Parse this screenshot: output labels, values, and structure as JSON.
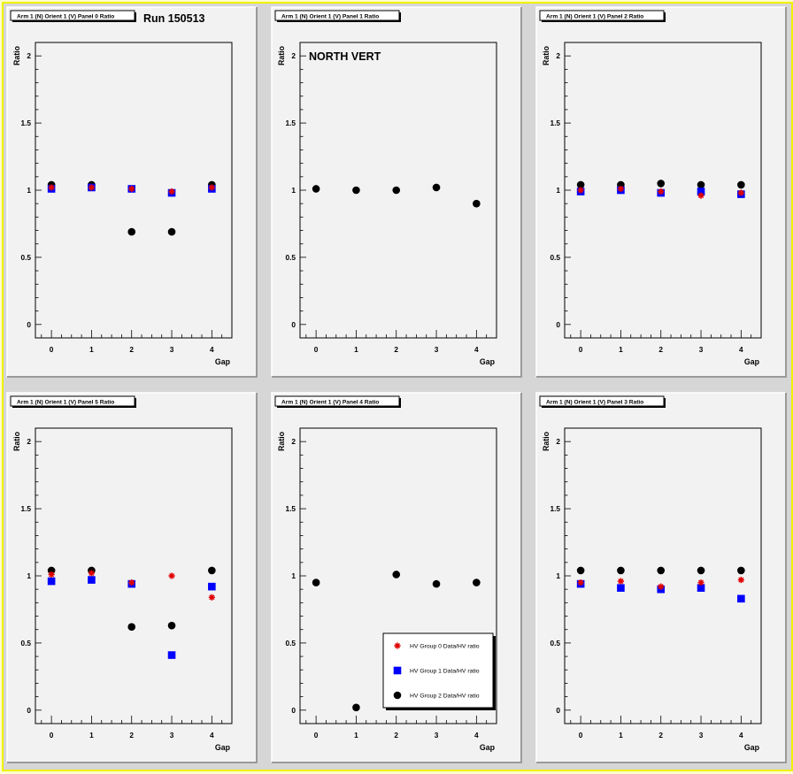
{
  "run_label": "Run 150513",
  "colors": {
    "group0": "#e00000",
    "group1": "#0000ff",
    "group2": "#000000",
    "pad": "#f2f2f2",
    "canvas": "#d6d6d6"
  },
  "legend": {
    "entries": [
      "HV Group 0 Data/HV ratio",
      "HV Group 1 Data/HV ratio",
      "HV Group 2 Data/HV ratio"
    ],
    "markers": [
      "star",
      "square",
      "circle"
    ]
  },
  "chart_data": [
    {
      "type": "scatter",
      "title": "Arm 1 (N) Orient 1 (V) Panel 0 Ratio",
      "annotation": "Run 150513",
      "xlabel": "Gap",
      "ylabel": "Ratio",
      "xlim": [
        -0.4,
        4.5
      ],
      "ylim": [
        -0.1,
        2.1
      ],
      "xticks": [
        "0",
        "1",
        "2",
        "3",
        "4"
      ],
      "yticks": [
        "0",
        "0.5",
        "1",
        "1.5",
        "2"
      ],
      "grid": false,
      "series": [
        {
          "name": "HV Group 0 Data/HV ratio",
          "x": [
            0,
            1,
            2,
            3,
            4
          ],
          "y": [
            1.02,
            1.02,
            1.01,
            0.99,
            1.02
          ]
        },
        {
          "name": "HV Group 1 Data/HV ratio",
          "x": [
            0,
            1,
            2,
            3,
            4
          ],
          "y": [
            1.01,
            1.02,
            1.01,
            0.98,
            1.01
          ]
        },
        {
          "name": "HV Group 2 Data/HV ratio",
          "x": [
            0,
            1,
            2,
            3,
            4
          ],
          "y": [
            1.04,
            1.04,
            0.69,
            0.69,
            1.04
          ]
        }
      ]
    },
    {
      "type": "scatter",
      "title": "Arm 1 (N) Orient 1 (V) Panel 1 Ratio",
      "annotation": "NORTH VERT",
      "xlabel": "Gap",
      "ylabel": "Ratio",
      "xlim": [
        -0.4,
        4.5
      ],
      "ylim": [
        -0.1,
        2.1
      ],
      "xticks": [
        "0",
        "1",
        "2",
        "3",
        "4"
      ],
      "yticks": [
        "0",
        "0.5",
        "1",
        "1.5",
        "2"
      ],
      "grid": false,
      "series": [
        {
          "name": "HV Group 0 Data/HV ratio",
          "x": [],
          "y": []
        },
        {
          "name": "HV Group 1 Data/HV ratio",
          "x": [],
          "y": []
        },
        {
          "name": "HV Group 2 Data/HV ratio",
          "x": [
            0,
            1,
            2,
            3,
            4
          ],
          "y": [
            1.01,
            1.0,
            1.0,
            1.02,
            0.9
          ]
        }
      ]
    },
    {
      "type": "scatter",
      "title": "Arm 1 (N) Orient 1 (V) Panel 2 Ratio",
      "annotation": "",
      "xlabel": "Gap",
      "ylabel": "Ratio",
      "xlim": [
        -0.4,
        4.5
      ],
      "ylim": [
        -0.1,
        2.1
      ],
      "xticks": [
        "0",
        "1",
        "2",
        "3",
        "4"
      ],
      "yticks": [
        "0",
        "0.5",
        "1",
        "1.5",
        "2"
      ],
      "grid": false,
      "series": [
        {
          "name": "HV Group 0 Data/HV ratio",
          "x": [
            0,
            1,
            2,
            3,
            4
          ],
          "y": [
            1.0,
            1.01,
            0.99,
            0.96,
            0.98
          ]
        },
        {
          "name": "HV Group 1 Data/HV ratio",
          "x": [
            0,
            1,
            2,
            3,
            4
          ],
          "y": [
            0.99,
            1.0,
            0.98,
            0.99,
            0.97
          ]
        },
        {
          "name": "HV Group 2 Data/HV ratio",
          "x": [
            0,
            1,
            2,
            3,
            4
          ],
          "y": [
            1.04,
            1.04,
            1.05,
            1.04,
            1.04
          ]
        }
      ]
    },
    {
      "type": "scatter",
      "title": "Arm 1 (N) Orient 1 (V) Panel 5 Ratio",
      "annotation": "",
      "xlabel": "Gap",
      "ylabel": "Ratio",
      "xlim": [
        -0.4,
        4.5
      ],
      "ylim": [
        -0.1,
        2.1
      ],
      "xticks": [
        "0",
        "1",
        "2",
        "3",
        "4"
      ],
      "yticks": [
        "0",
        "0.5",
        "1",
        "1.5",
        "2"
      ],
      "grid": false,
      "series": [
        {
          "name": "HV Group 0 Data/HV ratio",
          "x": [
            0,
            1,
            2,
            3,
            4
          ],
          "y": [
            1.01,
            1.02,
            0.95,
            1.0,
            0.84
          ]
        },
        {
          "name": "HV Group 1 Data/HV ratio",
          "x": [
            0,
            1,
            2,
            3,
            4
          ],
          "y": [
            0.96,
            0.97,
            0.94,
            0.41,
            0.92
          ]
        },
        {
          "name": "HV Group 2 Data/HV ratio",
          "x": [
            0,
            1,
            2,
            3,
            4
          ],
          "y": [
            1.04,
            1.04,
            0.62,
            0.63,
            1.04
          ]
        }
      ]
    },
    {
      "type": "scatter",
      "title": "Arm 1 (N) Orient 1 (V) Panel 4 Ratio",
      "annotation": "",
      "xlabel": "Gap",
      "ylabel": "Ratio",
      "xlim": [
        -0.4,
        4.5
      ],
      "ylim": [
        -0.1,
        2.1
      ],
      "xticks": [
        "0",
        "1",
        "2",
        "3",
        "4"
      ],
      "yticks": [
        "0",
        "0.5",
        "1",
        "1.5",
        "2"
      ],
      "grid": false,
      "legend": "bottom-right",
      "series": [
        {
          "name": "HV Group 0 Data/HV ratio",
          "x": [],
          "y": []
        },
        {
          "name": "HV Group 1 Data/HV ratio",
          "x": [],
          "y": []
        },
        {
          "name": "HV Group 2 Data/HV ratio",
          "x": [
            0,
            1,
            2,
            3,
            4
          ],
          "y": [
            0.95,
            0.02,
            1.01,
            0.94,
            0.95
          ]
        }
      ]
    },
    {
      "type": "scatter",
      "title": "Arm 1 (N) Orient 1 (V) Panel 3 Ratio",
      "annotation": "",
      "xlabel": "Gap",
      "ylabel": "Ratio",
      "xlim": [
        -0.4,
        4.5
      ],
      "ylim": [
        -0.1,
        2.1
      ],
      "xticks": [
        "0",
        "1",
        "2",
        "3",
        "4"
      ],
      "yticks": [
        "0",
        "0.5",
        "1",
        "1.5",
        "2"
      ],
      "grid": false,
      "series": [
        {
          "name": "HV Group 0 Data/HV ratio",
          "x": [
            0,
            1,
            2,
            3,
            4
          ],
          "y": [
            0.95,
            0.96,
            0.92,
            0.95,
            0.97
          ]
        },
        {
          "name": "HV Group 1 Data/HV ratio",
          "x": [
            0,
            1,
            2,
            3,
            4
          ],
          "y": [
            0.94,
            0.91,
            0.9,
            0.91,
            0.83
          ]
        },
        {
          "name": "HV Group 2 Data/HV ratio",
          "x": [
            0,
            1,
            2,
            3,
            4
          ],
          "y": [
            1.04,
            1.04,
            1.04,
            1.04,
            1.04
          ]
        }
      ]
    }
  ]
}
